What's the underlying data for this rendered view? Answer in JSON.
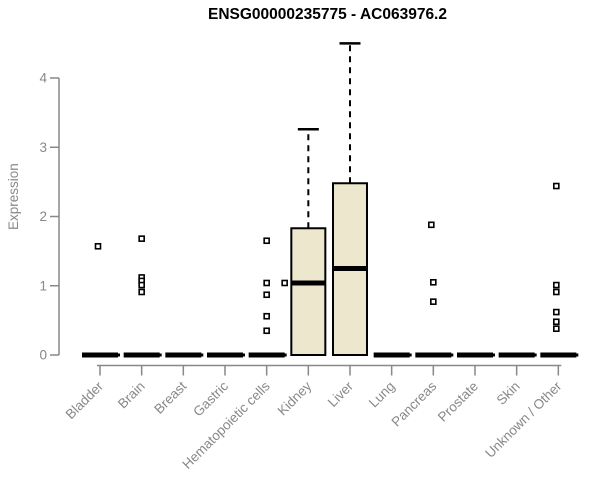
{
  "chart_data": {
    "type": "box",
    "title": "ENSG00000235775 - AC063976.2",
    "ylabel": "Expression",
    "xlabel": "",
    "ylim": [
      0,
      4.6
    ],
    "yticks": [
      0,
      1,
      2,
      3,
      4
    ],
    "grid": false,
    "legend": null,
    "colors": {
      "box_fill": "#EDE8CD",
      "box_stroke": "#000000",
      "median": "#000000",
      "whisker": "#000000",
      "outlier_fill": "#FFFFFF",
      "axis": "#888888",
      "title": "#000000"
    },
    "categories": [
      {
        "name": "Bladder",
        "type": "flat",
        "stats": {
          "median": 0
        },
        "outliers": [
          {
            "value": 1.57,
            "dx": -2
          }
        ]
      },
      {
        "name": "Brain",
        "type": "flat",
        "stats": {
          "median": 0
        },
        "outliers": [
          {
            "value": 1.68
          },
          {
            "value": 1.12
          },
          {
            "value": 1.07
          },
          {
            "value": 1.01
          },
          {
            "value": 0.91
          }
        ]
      },
      {
        "name": "Breast",
        "type": "flat",
        "stats": {
          "median": 0
        },
        "outliers": []
      },
      {
        "name": "Gastric",
        "type": "flat",
        "stats": {
          "median": 0
        },
        "outliers": []
      },
      {
        "name": "Hematopoietic cells",
        "type": "flat",
        "stats": {
          "median": 0
        },
        "outliers": [
          {
            "value": 1.65
          },
          {
            "value": 1.04
          },
          {
            "value": 0.87
          },
          {
            "value": 0.56
          },
          {
            "value": 0.35
          },
          {
            "value": 1.04,
            "dx": 18
          }
        ]
      },
      {
        "name": "Kidney",
        "type": "box",
        "stats": {
          "lower_whisker": 0,
          "q1": 0,
          "median": 1.04,
          "q3": 1.83,
          "upper_whisker": 3.26
        },
        "outliers": []
      },
      {
        "name": "Liver",
        "type": "box",
        "stats": {
          "lower_whisker": 0,
          "q1": 0,
          "median": 1.25,
          "q3": 2.48,
          "upper_whisker": 4.5
        },
        "outliers": []
      },
      {
        "name": "Lung",
        "type": "flat",
        "stats": {
          "median": 0
        },
        "outliers": []
      },
      {
        "name": "Pancreas",
        "type": "flat",
        "stats": {
          "median": 0
        },
        "outliers": [
          {
            "value": 1.88,
            "dx": -2
          },
          {
            "value": 1.05
          },
          {
            "value": 0.77
          }
        ]
      },
      {
        "name": "Prostate",
        "type": "flat",
        "stats": {
          "median": 0
        },
        "outliers": []
      },
      {
        "name": "Skin",
        "type": "flat",
        "stats": {
          "median": 0
        },
        "outliers": []
      },
      {
        "name": "Unknown / Other",
        "type": "flat",
        "stats": {
          "median": 0
        },
        "outliers": [
          {
            "value": 2.44,
            "dx": -2
          },
          {
            "value": 1.01,
            "dx": -2
          },
          {
            "value": 0.91,
            "dx": -2
          },
          {
            "value": 0.62,
            "dx": -2
          },
          {
            "value": 0.48,
            "dx": -2
          },
          {
            "value": 0.38,
            "dx": -2
          }
        ]
      }
    ]
  }
}
